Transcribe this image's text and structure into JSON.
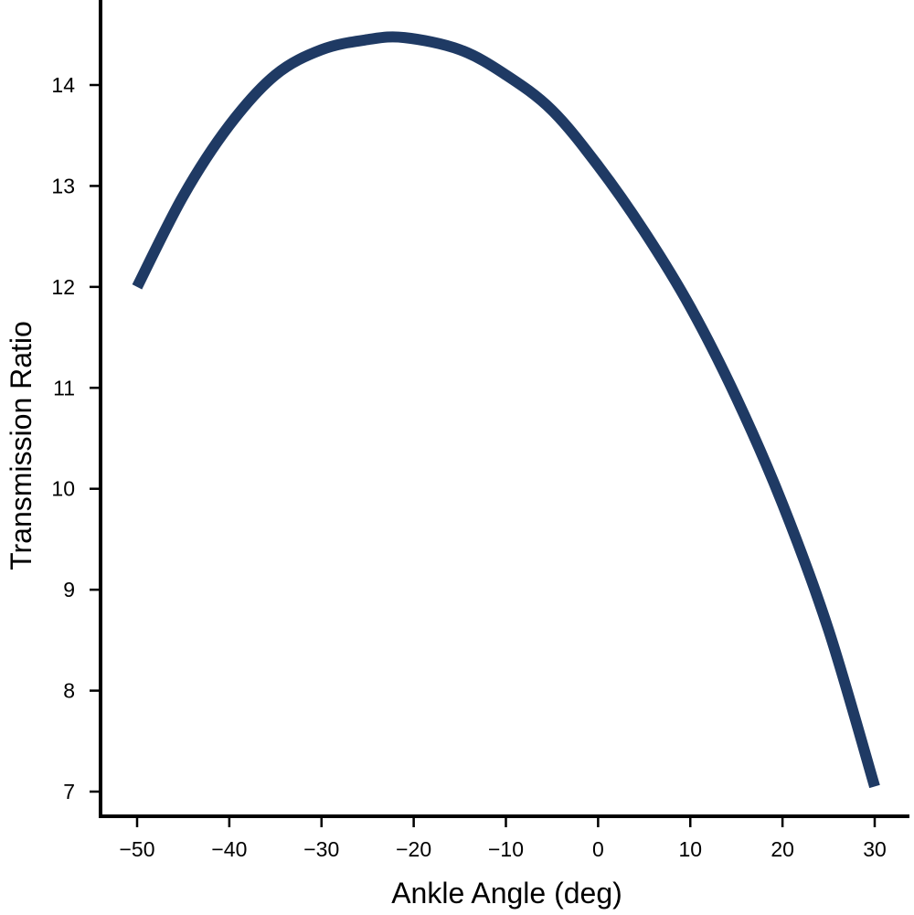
{
  "chart_data": {
    "type": "line",
    "title": "",
    "xlabel": "Ankle Angle (deg)",
    "ylabel": "Transmission Ratio",
    "xlim": [
      -54,
      34
    ],
    "ylim": [
      6.8,
      15.0
    ],
    "x_ticks": [
      -50,
      -40,
      -30,
      -20,
      -10,
      0,
      10,
      20,
      30
    ],
    "x_tick_labels": [
      "−50",
      "−40",
      "−30",
      "−20",
      "−10",
      "0",
      "10",
      "20",
      "30"
    ],
    "y_ticks": [
      7,
      8,
      9,
      10,
      11,
      12,
      13,
      14
    ],
    "y_tick_labels": [
      "7",
      "8",
      "9",
      "10",
      "11",
      "12",
      "13",
      "14"
    ],
    "grid": false,
    "series": [
      {
        "color": "#1f3a64",
        "x": [
          -50,
          -45,
          -40,
          -35,
          -30,
          -25,
          -21,
          -15,
          -10,
          -5,
          0,
          5,
          10,
          15,
          20,
          25,
          30
        ],
        "y": [
          12.0,
          12.9,
          13.6,
          14.1,
          14.35,
          14.45,
          14.47,
          14.35,
          14.1,
          13.75,
          13.2,
          12.55,
          11.8,
          10.9,
          9.85,
          8.6,
          7.05
        ]
      }
    ]
  }
}
